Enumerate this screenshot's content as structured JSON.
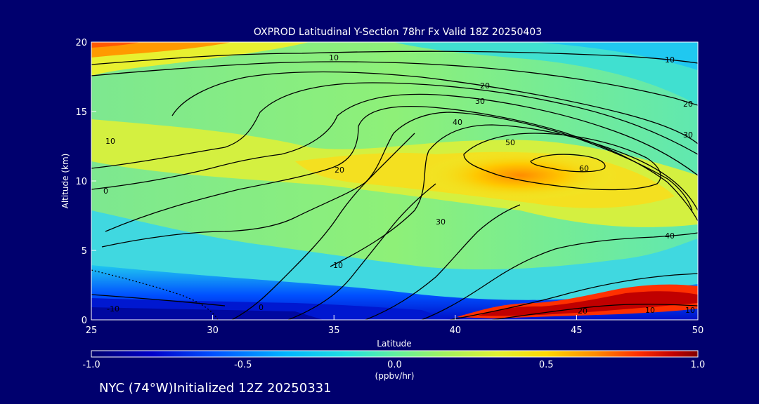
{
  "chart_data": {
    "type": "heatmap",
    "title": "OXPROD Latitudinal Y-Section 78hr  Fx Valid 18Z 20250403",
    "xlabel": "Latitude",
    "ylabel": "Altitude (km)",
    "xlim": [
      25,
      50
    ],
    "ylim": [
      0,
      20
    ],
    "x_ticks": [
      "25",
      "30",
      "35",
      "40",
      "45",
      "50"
    ],
    "y_ticks": [
      "0",
      "5",
      "10",
      "15",
      "20"
    ],
    "colorbar": {
      "min": -1.0,
      "max": 1.0,
      "ticks": [
        "-1.0",
        "-0.5",
        "0.0",
        "0.5",
        "1.0"
      ],
      "unit_label": "(ppbv/hr)",
      "colors": [
        "#00006e",
        "#0000c8",
        "#0050ff",
        "#00b4ff",
        "#20e0e0",
        "#60f0a0",
        "#a0f060",
        "#e0f030",
        "#ffd800",
        "#ff8c00",
        "#ff3000",
        "#c00000",
        "#800000"
      ]
    },
    "contour_labels": [
      "10",
      "10",
      "20",
      "20",
      "30",
      "30",
      "40",
      "40",
      "50",
      "60",
      "10",
      "0",
      "20",
      "30",
      "10",
      "-10",
      "0",
      "20",
      "10",
      "10"
    ]
  },
  "footer": {
    "text": "NYC (74°W)Initialized 12Z 20250331"
  }
}
